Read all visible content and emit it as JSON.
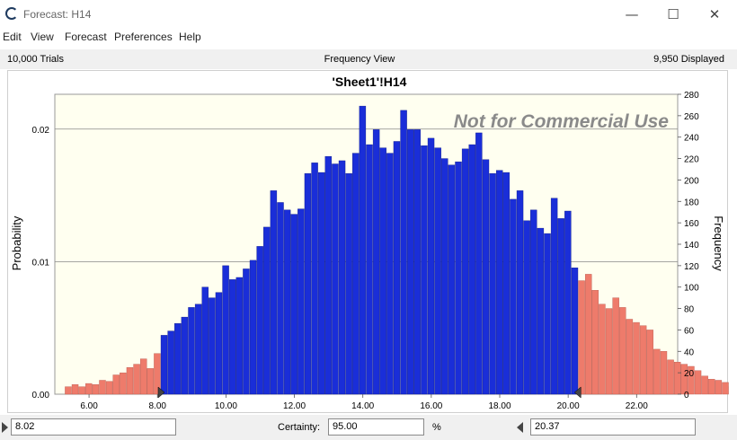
{
  "window": {
    "title": "Forecast: H14"
  },
  "window_controls": {
    "minimize": "—",
    "maximize": "☐",
    "close": "✕"
  },
  "menu": [
    "Edit",
    "View",
    "Forecast",
    "Preferences",
    "Help"
  ],
  "info_bar": {
    "trials": "10,000 Trials",
    "view": "Frequency View",
    "displayed": "9,950 Displayed"
  },
  "watermark": "Not for Commercial Use",
  "bottom": {
    "left_value": "8.02",
    "certainty_label": "Certainty:",
    "certainty_value": "95.00",
    "percent": "%",
    "right_value": "20.37"
  },
  "colors": {
    "in_range": "#1a2ed8",
    "out_range": "#ee7b6b",
    "plot_bg": "#fffff0",
    "grid": "#888888"
  },
  "chart_data": {
    "type": "bar",
    "title": "'Sheet1'!H14",
    "xlabel": "",
    "ylabel": "Probability",
    "y2label": "Frequency",
    "x_ticks": [
      "6.00",
      "8.00",
      "10.00",
      "12.00",
      "14.00",
      "16.00",
      "18.00",
      "20.00",
      "22.00"
    ],
    "y_ticks": [
      "0.00",
      "0.01",
      "0.02"
    ],
    "y2_ticks": [
      "0",
      "20",
      "40",
      "60",
      "80",
      "100",
      "120",
      "140",
      "160",
      "180",
      "200",
      "220",
      "240",
      "260",
      "280"
    ],
    "xlim": [
      5.0,
      23.2
    ],
    "y2lim": [
      0,
      280
    ],
    "bin_start": 5.3,
    "bin_width": 0.2,
    "lower_cut": 8.02,
    "upper_cut": 20.37,
    "frequencies": [
      7,
      9,
      7,
      10,
      9,
      13,
      12,
      18,
      20,
      25,
      28,
      33,
      24,
      38,
      55,
      59,
      66,
      72,
      81,
      84,
      100,
      90,
      95,
      120,
      107,
      109,
      117,
      125,
      138,
      156,
      190,
      179,
      172,
      168,
      173,
      206,
      216,
      207,
      222,
      215,
      218,
      206,
      225,
      269,
      233,
      247,
      230,
      225,
      236,
      265,
      247,
      247,
      232,
      239,
      230,
      220,
      214,
      217,
      229,
      233,
      244,
      219,
      206,
      209,
      207,
      182,
      190,
      162,
      172,
      155,
      150,
      183,
      164,
      171,
      118,
      106,
      112,
      97,
      84,
      80,
      90,
      81,
      70,
      67,
      64,
      60,
      42,
      40,
      32,
      30,
      28,
      26,
      22,
      17,
      14,
      13,
      11,
      7,
      6,
      3,
      4
    ]
  }
}
